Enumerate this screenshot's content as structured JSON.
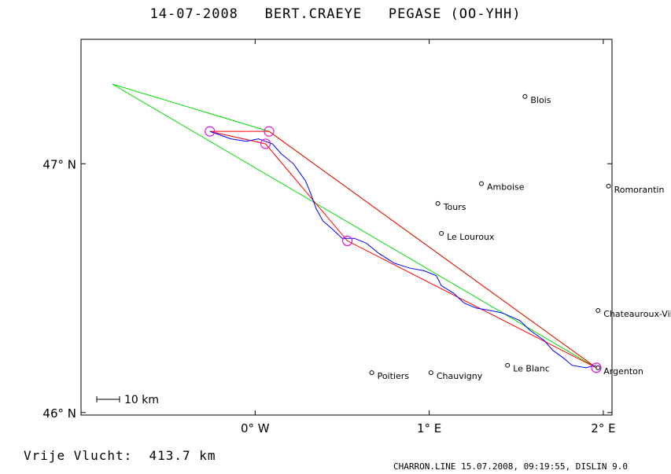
{
  "header": {
    "title": "14-07-2008   BERT.CRAEYE   PEGASE (OO-YHH)"
  },
  "footer": {
    "distance": "Vrije Vlucht:  413.7 km",
    "credits": "CHARRON.LINE 15.07.2008, 09:19:55, DISLIN 9.0"
  },
  "chart_data": {
    "type": "map",
    "xlim": [
      -1.0,
      2.05
    ],
    "ylim": [
      45.99,
      47.5
    ],
    "x_ticks": [
      {
        "value": 0,
        "label": "0° W"
      },
      {
        "value": 1,
        "label": "1° E"
      },
      {
        "value": 2,
        "label": "2° E"
      }
    ],
    "y_ticks": [
      {
        "value": 47,
        "label": "47° N"
      },
      {
        "value": 46,
        "label": "46° N"
      }
    ],
    "scale_bar": {
      "label": "10 km",
      "km": 10
    },
    "towns": [
      {
        "name": "Blois",
        "lon": 1.55,
        "lat": 47.27
      },
      {
        "name": "Amboise",
        "lon": 1.3,
        "lat": 46.92
      },
      {
        "name": "Romorantin",
        "lon": 2.03,
        "lat": 46.91
      },
      {
        "name": "Tours",
        "lon": 1.05,
        "lat": 46.84
      },
      {
        "name": "Le Louroux",
        "lon": 1.07,
        "lat": 46.72
      },
      {
        "name": "Chateauroux-Vill",
        "lon": 1.97,
        "lat": 46.41
      },
      {
        "name": "Le Blanc",
        "lon": 1.45,
        "lat": 46.19
      },
      {
        "name": "Poitiers",
        "lon": 0.67,
        "lat": 46.16
      },
      {
        "name": "Chauvigny",
        "lon": 1.01,
        "lat": 46.16
      },
      {
        "name": "Argenton",
        "lon": 1.97,
        "lat": 46.18
      }
    ],
    "turnpoints": [
      {
        "lon": -0.26,
        "lat": 47.13
      },
      {
        "lon": 0.08,
        "lat": 47.13
      },
      {
        "lon": 0.06,
        "lat": 47.08
      },
      {
        "lon": 0.53,
        "lat": 46.69
      },
      {
        "lon": 1.96,
        "lat": 46.18
      }
    ],
    "series": [
      {
        "color": "#00dd00",
        "points": [
          [
            -0.82,
            47.32
          ],
          [
            0.08,
            47.13
          ],
          [
            1.96,
            46.18
          ],
          [
            -0.82,
            47.32
          ]
        ]
      },
      {
        "color": "#ff0000",
        "points": [
          [
            -0.26,
            47.13
          ],
          [
            0.08,
            47.13
          ],
          [
            1.96,
            46.18
          ],
          [
            0.53,
            46.69
          ],
          [
            0.06,
            47.08
          ],
          [
            -0.26,
            47.13
          ]
        ]
      },
      {
        "color": "#0000ff",
        "points": [
          [
            -0.26,
            47.13
          ],
          [
            -0.14,
            47.1
          ],
          [
            -0.05,
            47.09
          ],
          [
            0.02,
            47.1
          ],
          [
            0.1,
            47.08
          ],
          [
            0.15,
            47.04
          ],
          [
            0.22,
            47.0
          ],
          [
            0.25,
            46.97
          ],
          [
            0.29,
            46.93
          ],
          [
            0.32,
            46.88
          ],
          [
            0.35,
            46.82
          ],
          [
            0.39,
            46.77
          ],
          [
            0.44,
            46.74
          ],
          [
            0.5,
            46.7
          ],
          [
            0.57,
            46.7
          ],
          [
            0.64,
            46.68
          ],
          [
            0.71,
            46.64
          ],
          [
            0.8,
            46.6
          ],
          [
            0.89,
            46.58
          ],
          [
            0.97,
            46.57
          ],
          [
            1.04,
            46.55
          ],
          [
            1.07,
            46.51
          ],
          [
            1.14,
            46.48
          ],
          [
            1.2,
            46.44
          ],
          [
            1.27,
            46.42
          ],
          [
            1.35,
            46.41
          ],
          [
            1.42,
            46.4
          ],
          [
            1.52,
            46.37
          ],
          [
            1.58,
            46.33
          ],
          [
            1.66,
            46.29
          ],
          [
            1.71,
            46.25
          ],
          [
            1.77,
            46.22
          ],
          [
            1.82,
            46.19
          ],
          [
            1.9,
            46.18
          ],
          [
            1.96,
            46.19
          ]
        ]
      }
    ]
  }
}
